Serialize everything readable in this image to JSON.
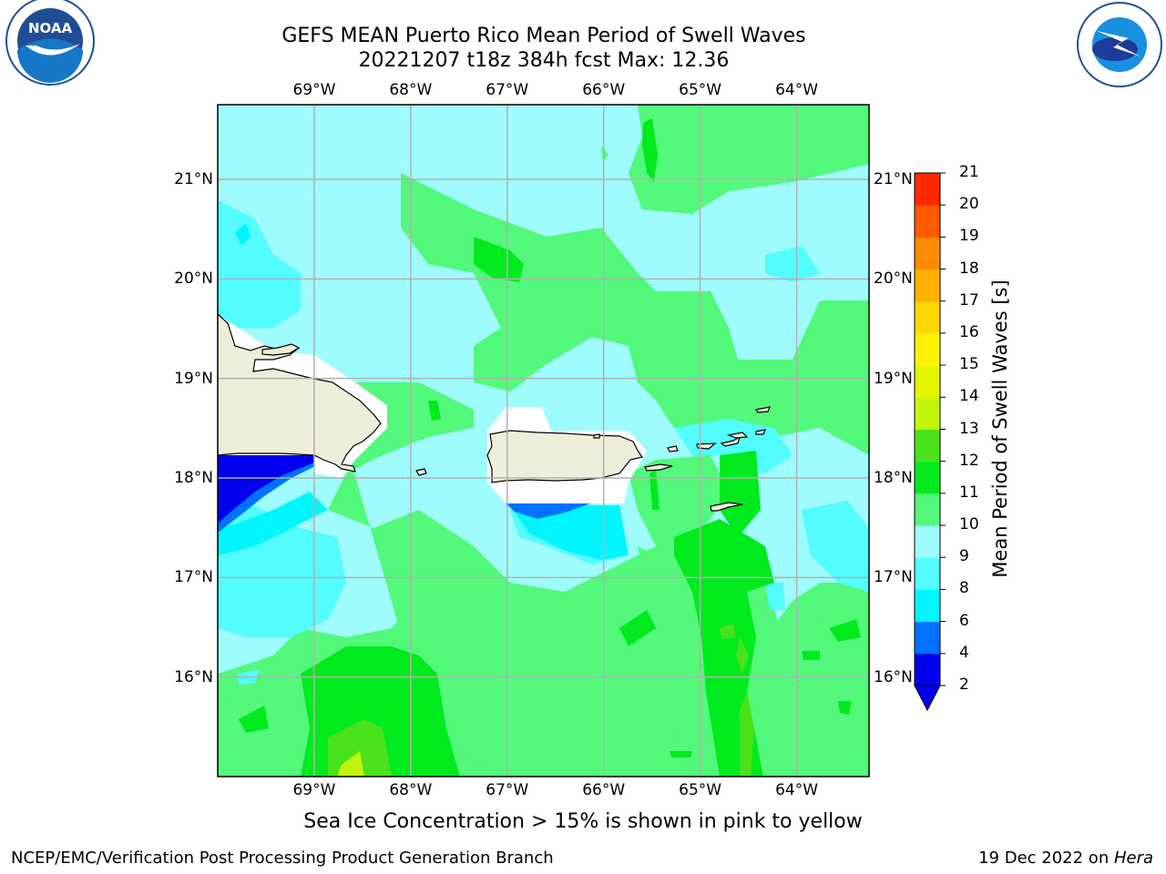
{
  "title_line1": "GEFS MEAN Puerto Rico Mean Period of Swell Waves",
  "title_line2": "20221207 t18z 384h fcst   Max: 12.36",
  "map": {
    "lon_ticks": [
      "69°W",
      "68°W",
      "67°W",
      "66°W",
      "65°W",
      "64°W"
    ],
    "lat_ticks": [
      "21°N",
      "20°N",
      "19°N",
      "18°N",
      "17°N",
      "16°N"
    ],
    "lon_range": [
      -70.0,
      -63.25
    ],
    "lat_range": [
      15.0,
      21.75
    ],
    "ocean_base_color": "#9ffcfc",
    "land_color": "#efeedb",
    "grid_color": "#b0b0b0"
  },
  "colorbar": {
    "label": "Mean Period of Swell Waves [s]",
    "ticks": [
      "2",
      "4",
      "6",
      "8",
      "9",
      "10",
      "11",
      "12",
      "13",
      "14",
      "15",
      "16",
      "17",
      "18",
      "19",
      "20",
      "21"
    ],
    "colors": [
      "#0000ee",
      "#0072ff",
      "#00f5ff",
      "#52fcff",
      "#9ffcfc",
      "#52f97a",
      "#00ea1e",
      "#4ae21b",
      "#c2f50c",
      "#e5f500",
      "#fff200",
      "#ffd700",
      "#ffb100",
      "#ff8a00",
      "#ff5a00",
      "#ff2a00"
    ],
    "under_color": "#0000ee"
  },
  "note": "Sea Ice Concentration > 15% is shown in pink to yellow",
  "footer_left": "NCEP/EMC/Verification Post Processing Product Generation Branch",
  "footer_date": "19 Dec 2022 on ",
  "footer_machine": "Hera",
  "logos": {
    "noaa_text": "NOAA",
    "noaa_ring": "NATIONAL OCEANIC AND ATMOSPHERIC ADMINISTRATION · U.S. DEPARTMENT OF COMMERCE",
    "nws_ring": "NATIONAL WEATHER SERVICE"
  }
}
